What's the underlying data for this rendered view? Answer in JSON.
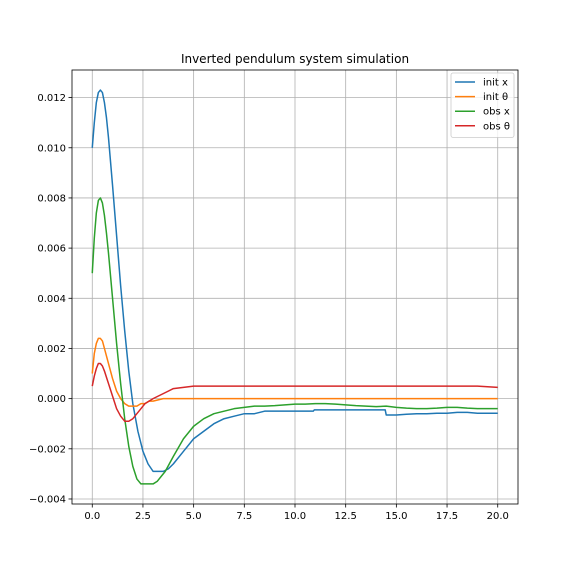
{
  "chart_data": {
    "type": "line",
    "title": "Inverted pendulum system simulation",
    "xlabel": "",
    "ylabel": "",
    "xlim": [
      -1.0,
      21.0
    ],
    "ylim": [
      -0.0042,
      0.0131
    ],
    "x_ticks": [
      0.0,
      2.5,
      5.0,
      7.5,
      10.0,
      12.5,
      15.0,
      17.5,
      20.0
    ],
    "x_tick_labels": [
      "0.0",
      "2.5",
      "5.0",
      "7.5",
      "10.0",
      "12.5",
      "15.0",
      "17.5",
      "20.0"
    ],
    "y_ticks": [
      -0.004,
      -0.002,
      0.0,
      0.002,
      0.004,
      0.006,
      0.008,
      0.01,
      0.012
    ],
    "y_tick_labels": [
      "−0.004",
      "−0.002",
      "0.000",
      "0.002",
      "0.004",
      "0.006",
      "0.008",
      "0.010",
      "0.012"
    ],
    "grid": true,
    "legend_position": "top-right",
    "series": [
      {
        "name": "init x",
        "color": "#1f77b4",
        "x": [
          0,
          0.1,
          0.2,
          0.3,
          0.4,
          0.5,
          0.6,
          0.7,
          0.8,
          1.0,
          1.2,
          1.4,
          1.6,
          1.8,
          2.0,
          2.25,
          2.5,
          2.75,
          3.0,
          3.25,
          3.5,
          3.75,
          4.0,
          4.5,
          5.0,
          5.5,
          6.0,
          6.5,
          7.0,
          7.5,
          8.0,
          8.5,
          9.0,
          9.5,
          10.0,
          10.5,
          10.9,
          10.95,
          11.5,
          12.0,
          12.5,
          13.0,
          13.5,
          14.0,
          14.45,
          14.5,
          15.0,
          15.5,
          16.0,
          16.5,
          17.0,
          17.5,
          18.0,
          18.5,
          19.0,
          19.5,
          20.0
        ],
        "y": [
          0.01,
          0.011,
          0.0118,
          0.0122,
          0.0123,
          0.0122,
          0.0118,
          0.0112,
          0.0104,
          0.0085,
          0.0065,
          0.0045,
          0.0027,
          0.0011,
          -0.0002,
          -0.0013,
          -0.0021,
          -0.0026,
          -0.0029,
          -0.0029,
          -0.0029,
          -0.0028,
          -0.0026,
          -0.0021,
          -0.0016,
          -0.0013,
          -0.001,
          -0.0008,
          -0.0007,
          -0.0006,
          -0.0006,
          -0.0005,
          -0.0005,
          -0.0005,
          -0.0005,
          -0.0005,
          -0.0005,
          -0.00045,
          -0.00045,
          -0.00045,
          -0.00045,
          -0.00045,
          -0.00045,
          -0.00045,
          -0.00045,
          -0.00065,
          -0.00065,
          -0.00062,
          -0.0006,
          -0.0006,
          -0.00058,
          -0.00058,
          -0.00055,
          -0.00055,
          -0.00058,
          -0.00058,
          -0.00058
        ]
      },
      {
        "name": "init θ",
        "color": "#ff7f0e",
        "x": [
          0,
          0.1,
          0.2,
          0.3,
          0.4,
          0.5,
          0.6,
          0.8,
          1.0,
          1.2,
          1.4,
          1.6,
          1.8,
          2.0,
          2.2,
          2.4,
          2.6,
          2.8,
          3.0,
          3.25,
          3.5,
          4.0,
          4.5,
          5.0,
          5.5,
          6.0,
          7.0,
          8.0,
          10.0,
          12.0,
          14.0,
          16.0,
          18.0,
          20.0
        ],
        "y": [
          0.001,
          0.0018,
          0.0022,
          0.0024,
          0.0024,
          0.0023,
          0.002,
          0.0014,
          0.0008,
          0.0003,
          0.0,
          -0.0002,
          -0.0003,
          -0.0003,
          -0.0003,
          -0.0002,
          -0.0002,
          -0.0001,
          -0.0001,
          -5e-05,
          0.0,
          0.0,
          0.0,
          0.0,
          0.0,
          0.0,
          0.0,
          0.0,
          0.0,
          0.0,
          0.0,
          0.0,
          0.0,
          0.0
        ]
      },
      {
        "name": "obs x",
        "color": "#2ca02c",
        "x": [
          0,
          0.1,
          0.2,
          0.3,
          0.4,
          0.5,
          0.6,
          0.7,
          0.8,
          1.0,
          1.2,
          1.4,
          1.6,
          1.8,
          2.0,
          2.2,
          2.4,
          2.6,
          2.8,
          3.0,
          3.2,
          3.4,
          3.6,
          3.8,
          4.0,
          4.5,
          5.0,
          5.5,
          6.0,
          6.5,
          7.0,
          7.5,
          8.0,
          8.5,
          9.0,
          9.5,
          10.0,
          10.5,
          11.0,
          11.5,
          12.0,
          12.5,
          13.0,
          13.5,
          14.0,
          14.5,
          15.0,
          15.5,
          16.0,
          16.5,
          17.0,
          17.5,
          18.0,
          18.5,
          19.0,
          19.5,
          20.0
        ],
        "y": [
          0.005,
          0.0064,
          0.0074,
          0.0079,
          0.008,
          0.0078,
          0.0073,
          0.0066,
          0.0058,
          0.004,
          0.0022,
          0.0006,
          -0.0008,
          -0.0019,
          -0.0027,
          -0.0032,
          -0.0034,
          -0.0034,
          -0.0034,
          -0.0034,
          -0.0033,
          -0.0031,
          -0.0029,
          -0.0026,
          -0.0023,
          -0.0016,
          -0.0011,
          -0.0008,
          -0.0006,
          -0.0005,
          -0.0004,
          -0.00035,
          -0.0003,
          -0.0003,
          -0.00028,
          -0.00025,
          -0.00022,
          -0.00022,
          -0.0002,
          -0.0002,
          -0.00022,
          -0.00025,
          -0.00028,
          -0.0003,
          -0.00032,
          -0.0003,
          -0.00035,
          -0.00038,
          -0.0004,
          -0.0004,
          -0.00038,
          -0.00035,
          -0.00035,
          -0.00038,
          -0.0004,
          -0.0004,
          -0.0004
        ]
      },
      {
        "name": "obs θ",
        "color": "#d62728",
        "x": [
          0,
          0.1,
          0.2,
          0.3,
          0.4,
          0.5,
          0.6,
          0.8,
          1.0,
          1.2,
          1.4,
          1.6,
          1.8,
          2.0,
          2.2,
          2.4,
          2.6,
          2.8,
          3.0,
          3.25,
          3.5,
          3.75,
          4.0,
          4.5,
          5.0,
          5.5,
          6.0,
          6.5,
          7.0,
          8.0,
          9.0,
          10.0,
          11.0,
          12.0,
          13.0,
          14.0,
          15.0,
          16.0,
          17.0,
          18.0,
          19.0,
          20.0
        ],
        "y": [
          0.0005,
          0.0009,
          0.0012,
          0.0014,
          0.0014,
          0.0013,
          0.0011,
          0.0006,
          0.0001,
          -0.0004,
          -0.0007,
          -0.0009,
          -0.0009,
          -0.0008,
          -0.0006,
          -0.0004,
          -0.0002,
          -0.0001,
          0.0,
          0.0001,
          0.0002,
          0.0003,
          0.0004,
          0.00045,
          0.0005,
          0.0005,
          0.0005,
          0.0005,
          0.0005,
          0.0005,
          0.0005,
          0.0005,
          0.0005,
          0.0005,
          0.0005,
          0.0005,
          0.0005,
          0.0005,
          0.0005,
          0.0005,
          0.0005,
          0.00045
        ]
      }
    ]
  }
}
